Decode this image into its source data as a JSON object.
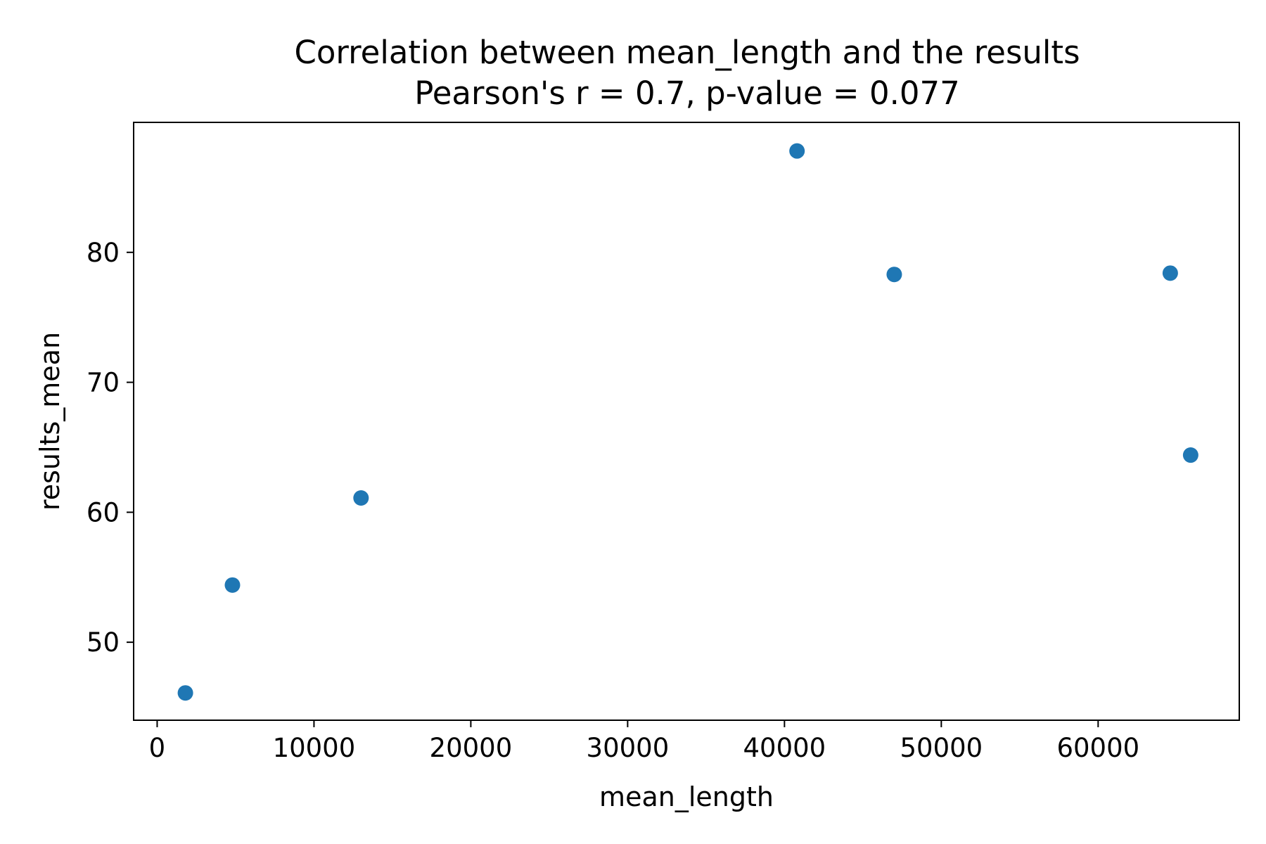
{
  "chart_data": {
    "type": "scatter",
    "title": "Correlation between mean_length and the results",
    "subtitle": "Pearson's r = 0.7, p-value = 0.077",
    "xlabel": "mean_length",
    "ylabel": "results_mean",
    "xlim": [
      -1500,
      69000
    ],
    "ylim": [
      44,
      90
    ],
    "xticks": [
      0,
      10000,
      20000,
      30000,
      40000,
      50000,
      60000
    ],
    "xtick_labels": [
      "0",
      "10000",
      "20000",
      "30000",
      "40000",
      "50000",
      "60000"
    ],
    "yticks": [
      50,
      60,
      70,
      80
    ],
    "ytick_labels": [
      "50",
      "60",
      "70",
      "80"
    ],
    "grid": false,
    "marker_color": "#1f77b4",
    "points": [
      {
        "x": 1800,
        "y": 46.1
      },
      {
        "x": 4800,
        "y": 54.4
      },
      {
        "x": 13000,
        "y": 61.1
      },
      {
        "x": 40800,
        "y": 87.8
      },
      {
        "x": 47000,
        "y": 78.3
      },
      {
        "x": 64600,
        "y": 78.4
      },
      {
        "x": 65900,
        "y": 64.4
      }
    ]
  }
}
